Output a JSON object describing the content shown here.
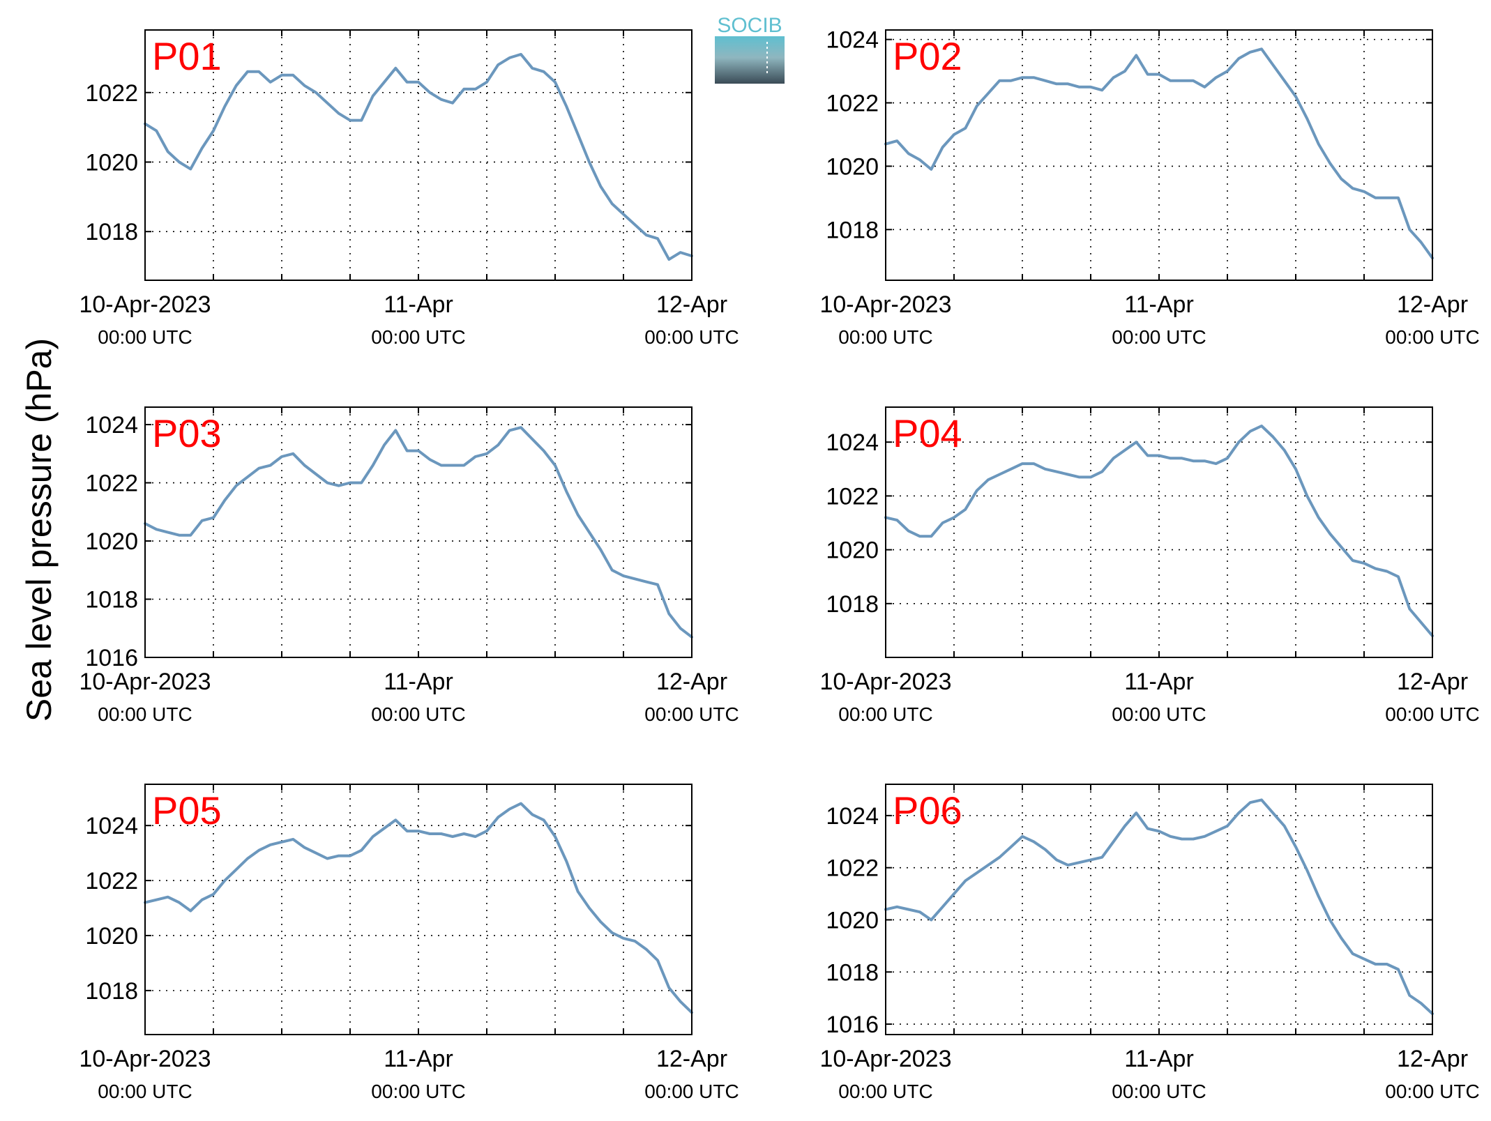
{
  "figure": {
    "ylabel": "Sea level pressure (hPa)",
    "logo_text": "SOCIB",
    "colors": {
      "line": "#6b97bd",
      "title": "#ff0000",
      "logo_top": "#5fbfd0",
      "logo_bottom": "#3a4b56"
    }
  },
  "chart_data": [
    {
      "type": "line",
      "title": "P01",
      "x_ticks": [
        {
          "date": "10-Apr-2023",
          "time": "00:00 UTC"
        },
        {
          "date": "11-Apr",
          "time": "00:00 UTC"
        },
        {
          "date": "12-Apr",
          "time": "00:00 UTC"
        }
      ],
      "xlim": [
        0,
        48
      ],
      "ylim": [
        1016.6,
        1023.8
      ],
      "yticks": [
        1018,
        1020,
        1022
      ],
      "grid": true,
      "x": [
        0,
        1,
        2,
        3,
        4,
        5,
        6,
        7,
        8,
        9,
        10,
        11,
        12,
        13,
        14,
        15,
        16,
        17,
        18,
        19,
        20,
        21,
        22,
        23,
        24,
        25,
        26,
        27,
        28,
        29,
        30,
        31,
        32,
        33,
        34,
        35,
        36,
        37,
        38,
        39,
        40,
        41,
        42,
        43,
        44,
        45,
        46,
        47,
        48
      ],
      "values": [
        1021.1,
        1020.9,
        1020.3,
        1020.0,
        1019.8,
        1020.4,
        1020.9,
        1021.6,
        1022.2,
        1022.6,
        1022.6,
        1022.3,
        1022.5,
        1022.5,
        1022.2,
        1022.0,
        1021.7,
        1021.4,
        1021.2,
        1021.2,
        1021.9,
        1022.3,
        1022.7,
        1022.3,
        1022.3,
        1022.0,
        1021.8,
        1021.7,
        1022.1,
        1022.1,
        1022.3,
        1022.8,
        1023.0,
        1023.1,
        1022.7,
        1022.6,
        1022.3,
        1021.6,
        1020.8,
        1020.0,
        1019.3,
        1018.8,
        1018.5,
        1018.2,
        1017.9,
        1017.8,
        1017.2,
        1017.4,
        1017.3
      ]
    },
    {
      "type": "line",
      "title": "P02",
      "x_ticks": [
        {
          "date": "10-Apr-2023",
          "time": "00:00 UTC"
        },
        {
          "date": "11-Apr",
          "time": "00:00 UTC"
        },
        {
          "date": "12-Apr",
          "time": "00:00 UTC"
        }
      ],
      "xlim": [
        0,
        48
      ],
      "ylim": [
        1016.4,
        1024.3
      ],
      "yticks": [
        1018,
        1020,
        1022,
        1024
      ],
      "grid": true,
      "x": [
        0,
        1,
        2,
        3,
        4,
        5,
        6,
        7,
        8,
        9,
        10,
        11,
        12,
        13,
        14,
        15,
        16,
        17,
        18,
        19,
        20,
        21,
        22,
        23,
        24,
        25,
        26,
        27,
        28,
        29,
        30,
        31,
        32,
        33,
        34,
        35,
        36,
        37,
        38,
        39,
        40,
        41,
        42,
        43,
        44,
        45,
        46,
        47,
        48
      ],
      "values": [
        1020.7,
        1020.8,
        1020.4,
        1020.2,
        1019.9,
        1020.6,
        1021.0,
        1021.2,
        1021.9,
        1022.3,
        1022.7,
        1022.7,
        1022.8,
        1022.8,
        1022.7,
        1022.6,
        1022.6,
        1022.5,
        1022.5,
        1022.4,
        1022.8,
        1023.0,
        1023.5,
        1022.9,
        1022.9,
        1022.7,
        1022.7,
        1022.7,
        1022.5,
        1022.8,
        1023.0,
        1023.4,
        1023.6,
        1023.7,
        1023.2,
        1022.7,
        1022.2,
        1021.5,
        1020.7,
        1020.1,
        1019.6,
        1019.3,
        1019.2,
        1019.0,
        1019.0,
        1019.0,
        1018.0,
        1017.6,
        1017.1
      ]
    },
    {
      "type": "line",
      "title": "P03",
      "x_ticks": [
        {
          "date": "10-Apr-2023",
          "time": "00:00 UTC"
        },
        {
          "date": "11-Apr",
          "time": "00:00 UTC"
        },
        {
          "date": "12-Apr",
          "time": "00:00 UTC"
        }
      ],
      "xlim": [
        0,
        48
      ],
      "ylim": [
        1016.0,
        1024.6
      ],
      "yticks": [
        1016,
        1018,
        1020,
        1022,
        1024
      ],
      "grid": true,
      "x": [
        0,
        1,
        2,
        3,
        4,
        5,
        6,
        7,
        8,
        9,
        10,
        11,
        12,
        13,
        14,
        15,
        16,
        17,
        18,
        19,
        20,
        21,
        22,
        23,
        24,
        25,
        26,
        27,
        28,
        29,
        30,
        31,
        32,
        33,
        34,
        35,
        36,
        37,
        38,
        39,
        40,
        41,
        42,
        43,
        44,
        45,
        46,
        47,
        48
      ],
      "values": [
        1020.6,
        1020.4,
        1020.3,
        1020.2,
        1020.2,
        1020.7,
        1020.8,
        1021.4,
        1021.9,
        1022.2,
        1022.5,
        1022.6,
        1022.9,
        1023.0,
        1022.6,
        1022.3,
        1022.0,
        1021.9,
        1022.0,
        1022.0,
        1022.6,
        1023.3,
        1023.8,
        1023.1,
        1023.1,
        1022.8,
        1022.6,
        1022.6,
        1022.6,
        1022.9,
        1023.0,
        1023.3,
        1023.8,
        1023.9,
        1023.5,
        1023.1,
        1022.6,
        1021.7,
        1020.9,
        1020.3,
        1019.7,
        1019.0,
        1018.8,
        1018.7,
        1018.6,
        1018.5,
        1017.5,
        1017.0,
        1016.7
      ]
    },
    {
      "type": "line",
      "title": "P04",
      "x_ticks": [
        {
          "date": "10-Apr-2023",
          "time": "00:00 UTC"
        },
        {
          "date": "11-Apr",
          "time": "00:00 UTC"
        },
        {
          "date": "12-Apr",
          "time": "00:00 UTC"
        }
      ],
      "xlim": [
        0,
        48
      ],
      "ylim": [
        1016.0,
        1025.3
      ],
      "yticks": [
        1018,
        1020,
        1022,
        1024
      ],
      "grid": true,
      "x": [
        0,
        1,
        2,
        3,
        4,
        5,
        6,
        7,
        8,
        9,
        10,
        11,
        12,
        13,
        14,
        15,
        16,
        17,
        18,
        19,
        20,
        21,
        22,
        23,
        24,
        25,
        26,
        27,
        28,
        29,
        30,
        31,
        32,
        33,
        34,
        35,
        36,
        37,
        38,
        39,
        40,
        41,
        42,
        43,
        44,
        45,
        46,
        47,
        48
      ],
      "values": [
        1021.2,
        1021.1,
        1020.7,
        1020.5,
        1020.5,
        1021.0,
        1021.2,
        1021.5,
        1022.2,
        1022.6,
        1022.8,
        1023.0,
        1023.2,
        1023.2,
        1023.0,
        1022.9,
        1022.8,
        1022.7,
        1022.7,
        1022.9,
        1023.4,
        1023.7,
        1024.0,
        1023.5,
        1023.5,
        1023.4,
        1023.4,
        1023.3,
        1023.3,
        1023.2,
        1023.4,
        1024.0,
        1024.4,
        1024.6,
        1024.2,
        1023.7,
        1023.0,
        1022.0,
        1021.2,
        1020.6,
        1020.1,
        1019.6,
        1019.5,
        1019.3,
        1019.2,
        1019.0,
        1017.8,
        1017.3,
        1016.8
      ]
    },
    {
      "type": "line",
      "title": "P05",
      "x_ticks": [
        {
          "date": "10-Apr-2023",
          "time": "00:00 UTC"
        },
        {
          "date": "11-Apr",
          "time": "00:00 UTC"
        },
        {
          "date": "12-Apr",
          "time": "00:00 UTC"
        }
      ],
      "xlim": [
        0,
        48
      ],
      "ylim": [
        1016.4,
        1025.5
      ],
      "yticks": [
        1018,
        1020,
        1022,
        1024
      ],
      "grid": true,
      "x": [
        0,
        1,
        2,
        3,
        4,
        5,
        6,
        7,
        8,
        9,
        10,
        11,
        12,
        13,
        14,
        15,
        16,
        17,
        18,
        19,
        20,
        21,
        22,
        23,
        24,
        25,
        26,
        27,
        28,
        29,
        30,
        31,
        32,
        33,
        34,
        35,
        36,
        37,
        38,
        39,
        40,
        41,
        42,
        43,
        44,
        45,
        46,
        47,
        48
      ],
      "values": [
        1021.2,
        1021.3,
        1021.4,
        1021.2,
        1020.9,
        1021.3,
        1021.5,
        1022.0,
        1022.4,
        1022.8,
        1023.1,
        1023.3,
        1023.4,
        1023.5,
        1023.2,
        1023.0,
        1022.8,
        1022.9,
        1022.9,
        1023.1,
        1023.6,
        1023.9,
        1024.2,
        1023.8,
        1023.8,
        1023.7,
        1023.7,
        1023.6,
        1023.7,
        1023.6,
        1023.8,
        1024.3,
        1024.6,
        1024.8,
        1024.4,
        1024.2,
        1023.6,
        1022.7,
        1021.6,
        1021.0,
        1020.5,
        1020.1,
        1019.9,
        1019.8,
        1019.5,
        1019.1,
        1018.1,
        1017.6,
        1017.2
      ]
    },
    {
      "type": "line",
      "title": "P06",
      "x_ticks": [
        {
          "date": "10-Apr-2023",
          "time": "00:00 UTC"
        },
        {
          "date": "11-Apr",
          "time": "00:00 UTC"
        },
        {
          "date": "12-Apr",
          "time": "00:00 UTC"
        }
      ],
      "xlim": [
        0,
        48
      ],
      "ylim": [
        1015.6,
        1025.2
      ],
      "yticks": [
        1016,
        1018,
        1020,
        1022,
        1024
      ],
      "grid": true,
      "x": [
        0,
        1,
        2,
        3,
        4,
        5,
        6,
        7,
        8,
        9,
        10,
        11,
        12,
        13,
        14,
        15,
        16,
        17,
        18,
        19,
        20,
        21,
        22,
        23,
        24,
        25,
        26,
        27,
        28,
        29,
        30,
        31,
        32,
        33,
        34,
        35,
        36,
        37,
        38,
        39,
        40,
        41,
        42,
        43,
        44,
        45,
        46,
        47,
        48
      ],
      "values": [
        1020.4,
        1020.5,
        1020.4,
        1020.3,
        1020.0,
        1020.5,
        1021.0,
        1021.5,
        1021.8,
        1022.1,
        1022.4,
        1022.8,
        1023.2,
        1023.0,
        1022.7,
        1022.3,
        1022.1,
        1022.2,
        1022.3,
        1022.4,
        1023.0,
        1023.6,
        1024.1,
        1023.5,
        1023.4,
        1023.2,
        1023.1,
        1023.1,
        1023.2,
        1023.4,
        1023.6,
        1024.1,
        1024.5,
        1024.6,
        1024.1,
        1023.6,
        1022.8,
        1021.9,
        1020.9,
        1020.0,
        1019.3,
        1018.7,
        1018.5,
        1018.3,
        1018.3,
        1018.1,
        1017.1,
        1016.8,
        1016.4
      ]
    }
  ]
}
